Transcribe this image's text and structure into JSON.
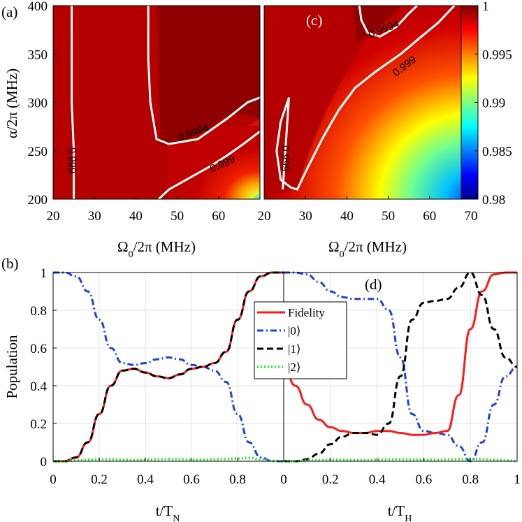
{
  "colors": {
    "fidelity": "#ff1a1a",
    "state0": "#1f3fe6",
    "state1": "#000000",
    "state2": "#22ee22",
    "contour": "#ffffff",
    "grid": "#e3e3e3"
  },
  "chart_data": [
    {
      "id": "a",
      "type": "heatmap",
      "panel_label": "(a)",
      "xlabel": "Ω0/2π (MHz)",
      "ylabel": "α/2π (MHz)",
      "xlim": [
        20,
        70
      ],
      "ylim": [
        200,
        400
      ],
      "xticks": [
        "20",
        "30",
        "40",
        "50",
        "60"
      ],
      "yticks": [
        "200",
        "250",
        "300",
        "350",
        "400"
      ],
      "contours": [
        {
          "level": "0.999",
          "points": [
            [
              24.5,
              400
            ],
            [
              24.5,
              350
            ],
            [
              24.5,
              300
            ],
            [
              25,
              250
            ],
            [
              25,
              200
            ]
          ]
        },
        {
          "level": "0.9994",
          "points": [
            [
              43,
              400
            ],
            [
              43,
              345
            ],
            [
              43.5,
              300
            ],
            [
              45,
              262
            ],
            [
              48,
              257
            ],
            [
              55,
              262
            ],
            [
              62,
              283
            ],
            [
              67,
              300
            ],
            [
              70,
              305
            ]
          ]
        },
        {
          "level": "0.999",
          "points": [
            [
              45.5,
              200
            ],
            [
              48,
              210
            ],
            [
              53,
              222
            ],
            [
              58,
              234
            ],
            [
              62,
              245
            ],
            [
              66,
              257
            ],
            [
              70,
              270
            ]
          ]
        }
      ],
      "contour_labels": [
        {
          "text": "0.999",
          "x": 24.5,
          "y": 240,
          "angle": 90
        },
        {
          "text": "0.9994",
          "x": 54,
          "y": 268,
          "angle": -20
        },
        {
          "text": "0.999",
          "x": 61,
          "y": 236,
          "angle": -25
        }
      ]
    },
    {
      "id": "c",
      "type": "heatmap",
      "panel_label": "(c)",
      "xlabel": "Ω0/2π (MHz)",
      "ylabel": "",
      "xlim": [
        20,
        70
      ],
      "ylim": [
        200,
        400
      ],
      "xticks": [
        "20",
        "30",
        "40",
        "50",
        "60",
        "70"
      ],
      "yticks": [],
      "colorbar": {
        "range": [
          0.98,
          1
        ],
        "ticks": [
          "0.98",
          "0.985",
          "0.99",
          "0.995",
          "1"
        ]
      },
      "contours": [
        {
          "level": "0.999",
          "points": [
            [
              24.5,
              210
            ],
            [
              26,
              305
            ],
            [
              24,
              280
            ],
            [
              23,
              250
            ],
            [
              24,
              220
            ],
            [
              26.5,
              212
            ],
            [
              28,
              210
            ],
            [
              30,
              228
            ],
            [
              34,
              262
            ],
            [
              38,
              292
            ],
            [
              42,
              315
            ],
            [
              47,
              332
            ],
            [
              53,
              350
            ],
            [
              58,
              368
            ],
            [
              62,
              382
            ],
            [
              66,
              400
            ]
          ]
        },
        {
          "level": "0.9994",
          "points": [
            [
              43,
              400
            ],
            [
              43.5,
              385
            ],
            [
              45,
              372
            ],
            [
              48,
              368
            ],
            [
              52,
              378
            ],
            [
              55,
              392
            ],
            [
              57,
              400
            ]
          ]
        }
      ],
      "contour_labels": [
        {
          "text": "0.999",
          "x": 25,
          "y": 242,
          "angle": 90
        },
        {
          "text": "0.9994",
          "x": 49,
          "y": 375,
          "angle": -22
        },
        {
          "text": "0.999",
          "x": 54,
          "y": 337,
          "angle": -38
        }
      ]
    },
    {
      "id": "b",
      "type": "line",
      "panel_label": "(b)",
      "xlabel": "t/TN",
      "ylabel": "Population",
      "xlim": [
        0,
        1
      ],
      "ylim": [
        0,
        1
      ],
      "xticks": [
        "0",
        "0.2",
        "0.4",
        "0.6",
        "0.8"
      ],
      "yticks": [
        "0",
        "0.2",
        "0.4",
        "0.6",
        "0.8",
        "1"
      ],
      "grid": true,
      "x": [
        0,
        0.05,
        0.1,
        0.15,
        0.2,
        0.25,
        0.3,
        0.35,
        0.4,
        0.45,
        0.5,
        0.55,
        0.6,
        0.65,
        0.7,
        0.75,
        0.8,
        0.85,
        0.9,
        0.95,
        1
      ],
      "series": [
        {
          "name": "Fidelity",
          "values": [
            0,
            0,
            0.02,
            0.1,
            0.25,
            0.4,
            0.48,
            0.49,
            0.47,
            0.45,
            0.44,
            0.46,
            0.49,
            0.5,
            0.52,
            0.58,
            0.75,
            0.9,
            0.98,
            1,
            1
          ]
        },
        {
          "name": "|0⟩",
          "values": [
            1,
            1,
            0.98,
            0.9,
            0.75,
            0.6,
            0.52,
            0.51,
            0.52,
            0.54,
            0.55,
            0.54,
            0.51,
            0.5,
            0.48,
            0.42,
            0.25,
            0.1,
            0.02,
            0,
            0
          ]
        },
        {
          "name": "|1⟩",
          "values": [
            0,
            0,
            0.02,
            0.1,
            0.25,
            0.4,
            0.48,
            0.49,
            0.47,
            0.45,
            0.44,
            0.46,
            0.49,
            0.5,
            0.52,
            0.58,
            0.75,
            0.9,
            0.98,
            1,
            1
          ]
        },
        {
          "name": "|2⟩",
          "values": [
            0,
            0,
            0.005,
            0.008,
            0.01,
            0.01,
            0.008,
            0.006,
            0.008,
            0.01,
            0.012,
            0.01,
            0.008,
            0.008,
            0.01,
            0.012,
            0.015,
            0.018,
            0.01,
            0.003,
            0
          ]
        }
      ]
    },
    {
      "id": "d",
      "type": "line",
      "panel_label": "(d)",
      "xlabel": "t/TH",
      "ylabel": "",
      "xlim": [
        0,
        1
      ],
      "ylim": [
        0,
        1
      ],
      "xticks": [
        "0",
        "0.2",
        "0.4",
        "0.6",
        "0.8",
        "1"
      ],
      "yticks": [],
      "grid": true,
      "legend": {
        "entries": [
          "Fidelity",
          "|0⟩",
          "|1⟩",
          "|2⟩"
        ],
        "placement": "upper-left"
      },
      "x": [
        0,
        0.05,
        0.1,
        0.15,
        0.2,
        0.25,
        0.3,
        0.35,
        0.4,
        0.45,
        0.5,
        0.55,
        0.6,
        0.65,
        0.7,
        0.75,
        0.8,
        0.85,
        0.9,
        0.95,
        1
      ],
      "series": [
        {
          "name": "Fidelity",
          "values": [
            0.5,
            0.4,
            0.3,
            0.22,
            0.18,
            0.16,
            0.15,
            0.15,
            0.16,
            0.16,
            0.15,
            0.14,
            0.14,
            0.15,
            0.16,
            0.35,
            0.7,
            0.9,
            0.99,
            1,
            1
          ]
        },
        {
          "name": "|0⟩",
          "values": [
            1,
            1,
            0.99,
            0.95,
            0.9,
            0.87,
            0.86,
            0.86,
            0.86,
            0.8,
            0.55,
            0.25,
            0.16,
            0.15,
            0.14,
            0.08,
            0,
            0.1,
            0.3,
            0.45,
            0.5
          ]
        },
        {
          "name": "|1⟩",
          "values": [
            0,
            0,
            0.01,
            0.04,
            0.09,
            0.13,
            0.15,
            0.15,
            0.14,
            0.2,
            0.45,
            0.75,
            0.84,
            0.85,
            0.86,
            0.92,
            1,
            0.88,
            0.7,
            0.55,
            0.5
          ]
        },
        {
          "name": "|2⟩",
          "values": [
            0,
            0,
            0.004,
            0.006,
            0.008,
            0.008,
            0.006,
            0.006,
            0.008,
            0.01,
            0.01,
            0.01,
            0.008,
            0.008,
            0.01,
            0.01,
            0.012,
            0.01,
            0.008,
            0.005,
            0
          ]
        }
      ]
    }
  ],
  "legend_labels": [
    "Fidelity",
    "|0⟩",
    "|1⟩",
    "|2⟩"
  ]
}
